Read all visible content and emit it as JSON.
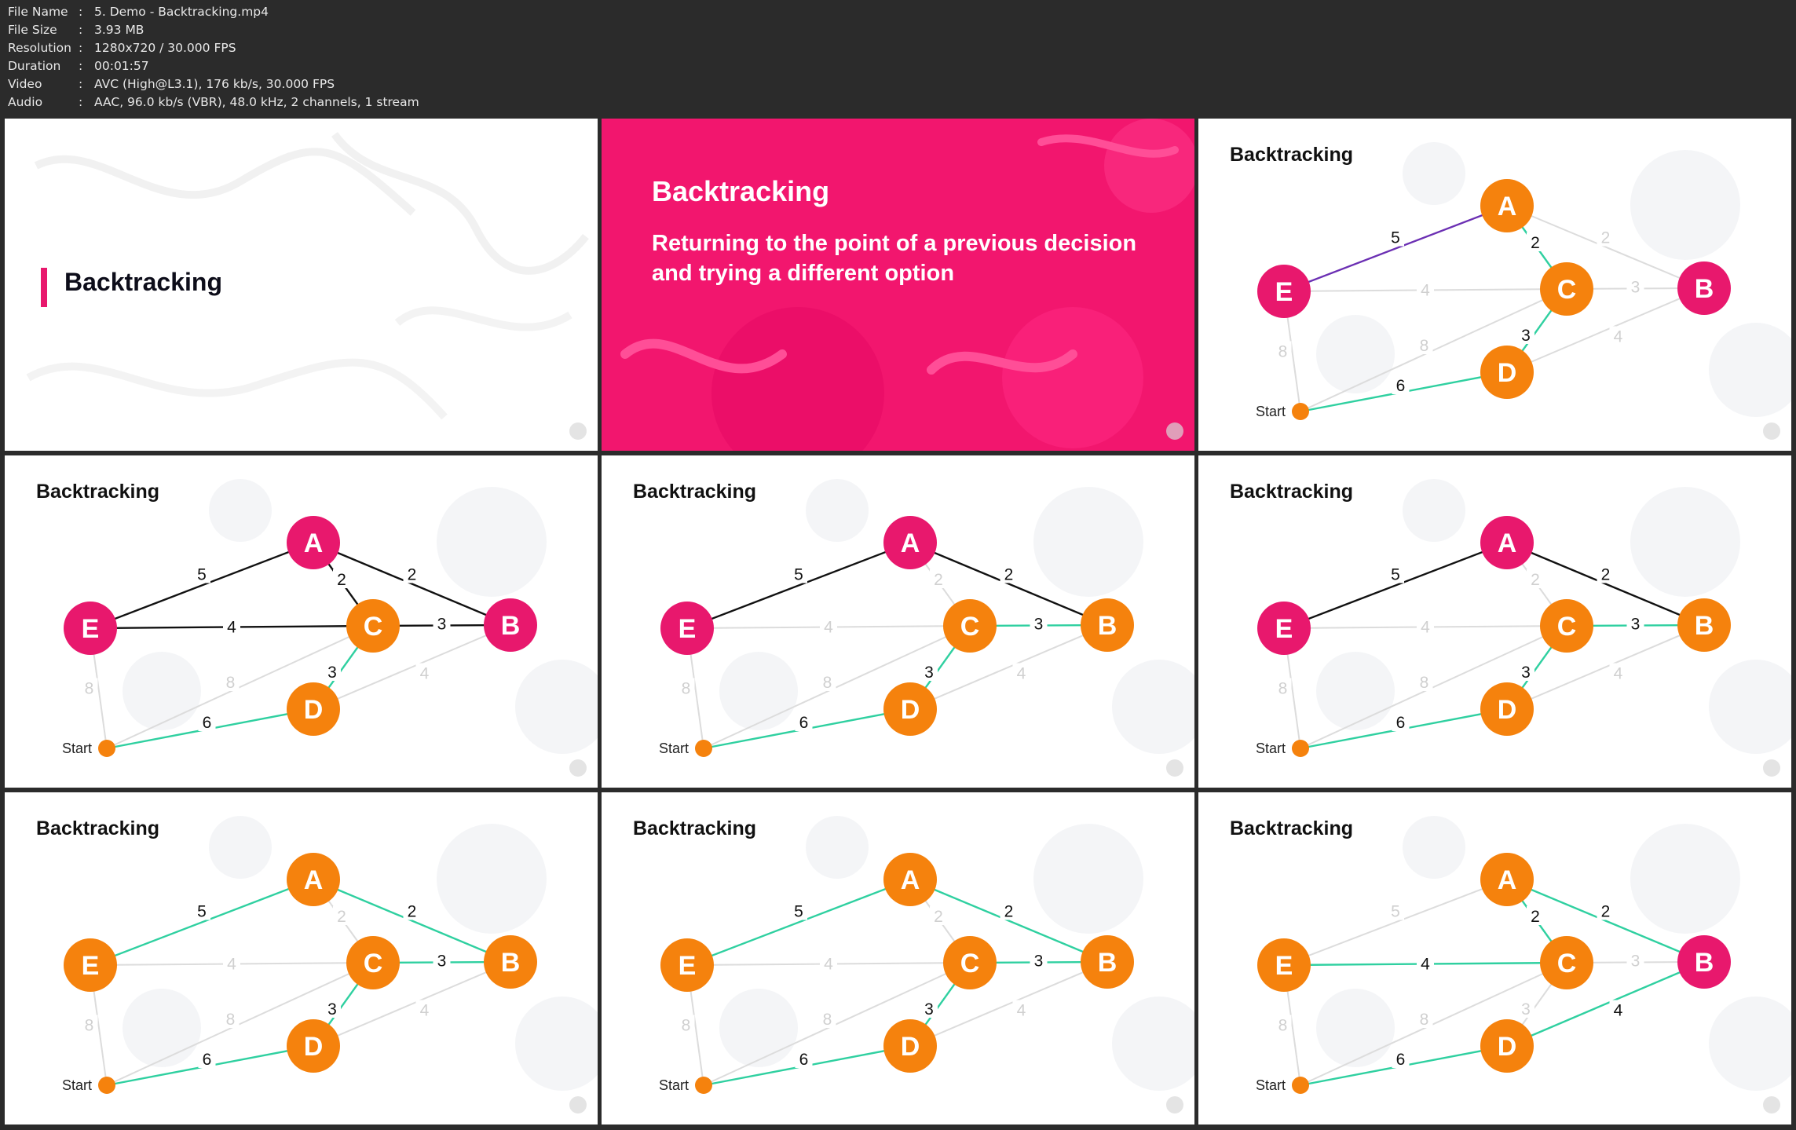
{
  "file_info": [
    {
      "label": "File Name",
      "value": "5. Demo - Backtracking.mp4"
    },
    {
      "label": "File Size",
      "value": "3.93 MB"
    },
    {
      "label": "Resolution",
      "value": "1280x720 / 30.000 FPS"
    },
    {
      "label": "Duration",
      "value": "00:01:57"
    },
    {
      "label": "Video",
      "value": "AVC (High@L3.1), 176 kb/s, 30.000 FPS"
    },
    {
      "label": "Audio",
      "value": "AAC, 96.0 kb/s (VBR), 48.0 kHz, 2 channels, 1 stream"
    }
  ],
  "colors": {
    "pink": "#e8186d",
    "orange": "#f5820d",
    "green": "#2fd0a0",
    "purple": "#6b2fb3",
    "dark": "#111111",
    "faded": "#dcdcdc"
  },
  "intro": {
    "title": "Backtracking"
  },
  "definition": {
    "title": "Backtracking",
    "text": "Returning to the point of a previous decision and trying a different option"
  },
  "graph": {
    "start_label": "Start",
    "nodes": [
      "A",
      "B",
      "C",
      "D",
      "E"
    ],
    "edges": [
      {
        "id": "EA",
        "weight": "5"
      },
      {
        "id": "AC",
        "weight": "2"
      },
      {
        "id": "AB",
        "weight": "2"
      },
      {
        "id": "EC",
        "weight": "4"
      },
      {
        "id": "CB",
        "weight": "3"
      },
      {
        "id": "CD",
        "weight": "3"
      },
      {
        "id": "DB",
        "weight": "4"
      },
      {
        "id": "SD",
        "weight": "6"
      },
      {
        "id": "SE",
        "weight": "8"
      },
      {
        "id": "SC",
        "weight": "8"
      }
    ]
  },
  "frames": [
    {
      "title": "Backtracking",
      "nodes": {
        "A": "orange",
        "B": "pink",
        "C": "orange",
        "D": "orange",
        "E": "pink"
      },
      "edges": {
        "EA": "purple",
        "AC": "green",
        "CD": "green",
        "SD": "green"
      }
    },
    {
      "title": "Backtracking",
      "nodes": {
        "A": "pink",
        "B": "pink",
        "C": "orange",
        "D": "orange",
        "E": "pink"
      },
      "edges": {
        "EA": "dark",
        "AC": "dark",
        "AB": "dark",
        "EC": "dark",
        "CB": "dark",
        "CD": "green",
        "SD": "green"
      }
    },
    {
      "title": "Backtracking",
      "nodes": {
        "A": "pink",
        "B": "orange",
        "C": "orange",
        "D": "orange",
        "E": "pink"
      },
      "edges": {
        "EA": "dark",
        "AB": "dark",
        "CB": "green",
        "CD": "green",
        "SD": "green"
      }
    },
    {
      "title": "Backtracking",
      "nodes": {
        "A": "pink",
        "B": "orange",
        "C": "orange",
        "D": "orange",
        "E": "pink"
      },
      "edges": {
        "EA": "dark",
        "AB": "dark",
        "CB": "green",
        "CD": "green",
        "SD": "green"
      }
    },
    {
      "title": "Backtracking",
      "nodes": {
        "A": "orange",
        "B": "orange",
        "C": "orange",
        "D": "orange",
        "E": "orange"
      },
      "edges": {
        "EA": "green",
        "AB": "green",
        "CB": "green",
        "CD": "green",
        "SD": "green"
      }
    },
    {
      "title": "Backtracking",
      "nodes": {
        "A": "orange",
        "B": "orange",
        "C": "orange",
        "D": "orange",
        "E": "orange"
      },
      "edges": {
        "EA": "green",
        "AB": "green",
        "CB": "green",
        "CD": "green",
        "SD": "green"
      }
    },
    {
      "title": "Backtracking",
      "nodes": {
        "A": "orange",
        "B": "pink",
        "C": "orange",
        "D": "orange",
        "E": "orange"
      },
      "edges": {
        "AC": "green",
        "AB": "green",
        "EC": "green",
        "DB": "green",
        "SD": "green"
      }
    }
  ]
}
